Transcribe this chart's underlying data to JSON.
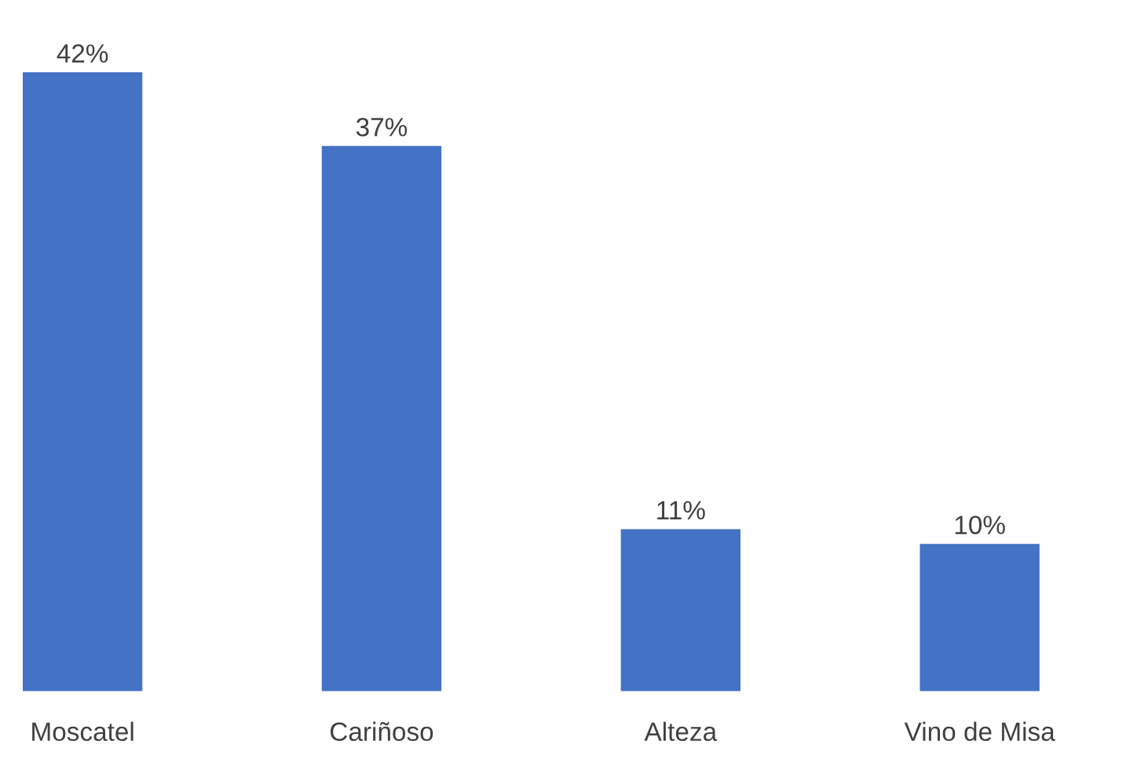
{
  "chart_data": {
    "type": "bar",
    "categories": [
      "Moscatel",
      "Cariñoso",
      "Alteza",
      "Vino de Misa"
    ],
    "values": [
      42,
      37,
      11,
      10
    ],
    "value_labels": [
      "42%",
      "37%",
      "11%",
      "10%"
    ],
    "color": "#4472c4"
  }
}
